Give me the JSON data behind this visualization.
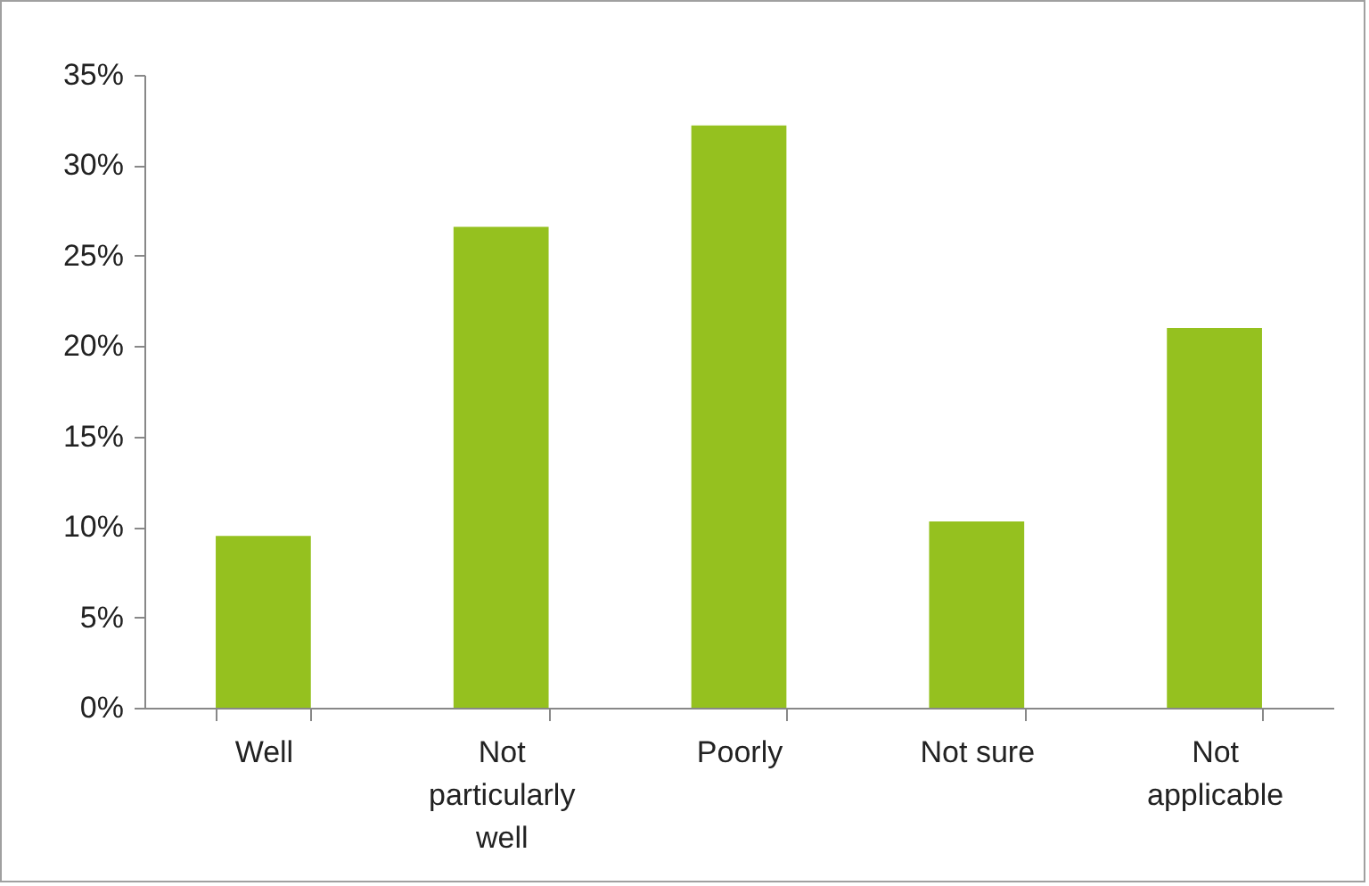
{
  "chart_data": {
    "type": "bar",
    "categories": [
      "Well",
      "Not particularly well",
      "Poorly",
      "Not sure",
      "Not applicable"
    ],
    "values": [
      9.5,
      26.6,
      32.2,
      10.3,
      21.0
    ],
    "color": "#95c11f",
    "ylim": [
      0,
      35
    ],
    "yticks": [
      {
        "value": 0,
        "label": "0%"
      },
      {
        "value": 5,
        "label": "5%"
      },
      {
        "value": 10,
        "label": "10%"
      },
      {
        "value": 15,
        "label": "15%"
      },
      {
        "value": 20,
        "label": "20%"
      },
      {
        "value": 25,
        "label": "25%"
      },
      {
        "value": 30,
        "label": "30%"
      },
      {
        "value": 35,
        "label": "35%"
      }
    ],
    "grid": false
  }
}
